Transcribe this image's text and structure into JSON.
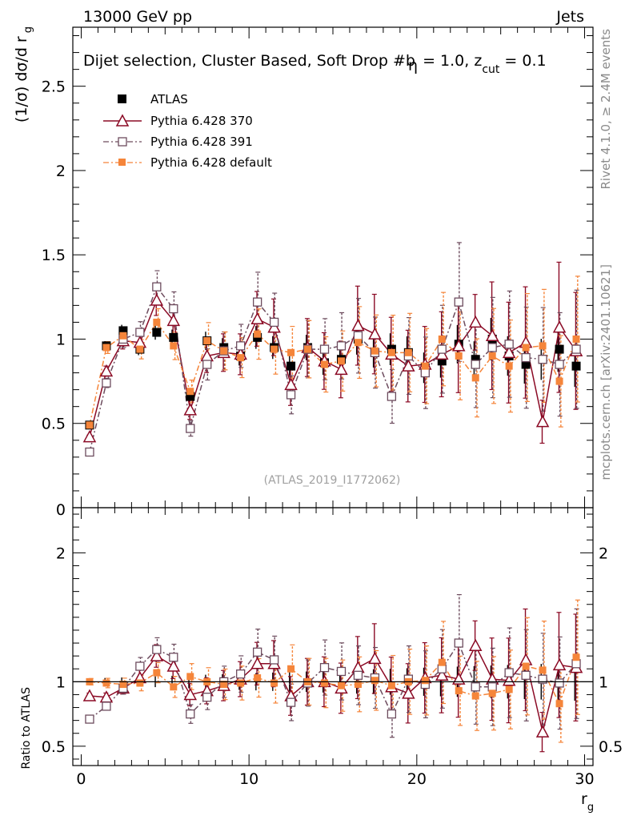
{
  "chart_data": {
    "type": "scatter",
    "header_left": "13000 GeV pp",
    "header_right": "Jets",
    "title_parts": [
      "Dijet selection, Cluster Based, Soft Drop #b",
      "η",
      " = 1.0, z",
      "cut",
      " = 0.1"
    ],
    "watermark": "(ATLAS_2019_I1772062)",
    "side_label_top": "Rivet 4.1.0, ≥ 2.4M events",
    "side_label_bottom": "mcplots.cern.ch [arXiv:2401.10621]",
    "main_ylabel": "(1/σ) dσ/d r",
    "main_ylabel_sub": "g",
    "ratio_ylabel": "Ratio to ATLAS",
    "xlabel": "r",
    "xlabel_sub": "g",
    "xlim": [
      -0.5,
      30.5
    ],
    "main_ylim": [
      0,
      2.85
    ],
    "ratio_ylim": [
      0.35,
      2.35
    ],
    "main_yticks": [
      {
        "v": 0.5,
        "label": "0.5"
      },
      {
        "v": 1,
        "label": "1"
      },
      {
        "v": 1.5,
        "label": "1.5"
      },
      {
        "v": 2,
        "label": "2"
      },
      {
        "v": 2.5,
        "label": "2.5"
      }
    ],
    "main_bottom_label": "0",
    "ratio_yticks": [
      {
        "v": 0.5,
        "label": "0.5"
      },
      {
        "v": 1,
        "label": "1"
      },
      {
        "v": 2,
        "label": "2"
      }
    ],
    "xticks": [
      {
        "v": 0,
        "label": "0"
      },
      {
        "v": 10,
        "label": "10"
      },
      {
        "v": 20,
        "label": "20"
      },
      {
        "v": 30,
        "label": "30"
      }
    ],
    "x": [
      0.5,
      1.5,
      2.5,
      3.5,
      4.5,
      5.5,
      6.5,
      7.5,
      8.5,
      9.5,
      10.5,
      11.5,
      12.5,
      13.5,
      14.5,
      15.5,
      16.5,
      17.5,
      18.5,
      19.5,
      20.5,
      21.5,
      22.5,
      23.5,
      24.5,
      25.5,
      26.5,
      27.5,
      28.5,
      29.5
    ],
    "series": [
      {
        "name": "ATLAS",
        "style": "data",
        "color": "#000000",
        "values": [
          0.49,
          0.96,
          1.05,
          0.94,
          1.04,
          1.01,
          0.66,
          0.99,
          0.95,
          0.9,
          1.01,
          0.95,
          0.84,
          0.95,
          0.86,
          0.88,
          1.0,
          0.92,
          0.94,
          0.92,
          0.83,
          0.87,
          0.97,
          0.88,
          1.0,
          0.9,
          0.85,
          0.88,
          0.94,
          0.84
        ],
        "ratio": [
          1,
          1,
          1,
          1,
          1,
          1,
          1,
          1,
          1,
          1,
          1,
          1,
          1,
          1,
          1,
          1,
          1,
          1,
          1,
          1,
          1,
          1,
          1,
          1,
          1,
          1,
          1,
          1,
          1,
          1
        ]
      },
      {
        "name": "Pythia 6.428 370",
        "style": "triangle",
        "color": "#8b0a25",
        "values": [
          0.42,
          0.81,
          0.99,
          0.98,
          1.23,
          1.11,
          0.58,
          0.9,
          0.92,
          0.91,
          1.12,
          1.07,
          0.73,
          0.95,
          0.87,
          0.82,
          1.08,
          1.03,
          0.91,
          0.84,
          0.85,
          0.91,
          0.96,
          1.1,
          1.02,
          0.92,
          0.98,
          0.51,
          1.07,
          0.93
        ],
        "ratio": [
          0.89,
          0.88,
          0.95,
          1.03,
          1.2,
          1.12,
          0.9,
          0.93,
          0.97,
          1.02,
          1.14,
          1.14,
          0.89,
          1.0,
          1.0,
          0.95,
          1.11,
          1.18,
          0.96,
          0.91,
          1.03,
          1.05,
          1.02,
          1.28,
          1.02,
          1.01,
          1.17,
          0.61,
          1.13,
          1.11
        ]
      },
      {
        "name": "Pythia 6.428 391",
        "style": "square-open",
        "color": "#6d4c5e",
        "values": [
          0.33,
          0.74,
          1.0,
          1.04,
          1.31,
          1.18,
          0.47,
          0.85,
          0.93,
          0.96,
          1.22,
          1.1,
          0.67,
          0.94,
          0.94,
          0.96,
          1.02,
          0.92,
          0.66,
          0.9,
          0.8,
          0.94,
          1.22,
          0.85,
          0.95,
          0.97,
          0.89,
          0.88,
          0.85,
          0.94
        ],
        "ratio": [
          0.71,
          0.81,
          0.95,
          1.12,
          1.25,
          1.19,
          0.75,
          0.88,
          1.0,
          1.06,
          1.23,
          1.17,
          0.84,
          0.99,
          1.11,
          1.08,
          1.05,
          1.03,
          0.75,
          1.02,
          0.98,
          1.1,
          1.3,
          0.96,
          0.96,
          1.07,
          1.05,
          1.02,
          0.99,
          1.14
        ]
      },
      {
        "name": "Pythia 6.428 default",
        "style": "square-filled",
        "color": "#f5853a",
        "values": [
          0.49,
          0.95,
          1.02,
          0.94,
          1.1,
          0.96,
          0.69,
          0.99,
          0.93,
          0.89,
          1.03,
          0.94,
          0.92,
          0.94,
          0.85,
          0.87,
          0.98,
          0.93,
          0.92,
          0.92,
          0.84,
          1.0,
          0.9,
          0.77,
          0.9,
          0.84,
          0.95,
          0.96,
          0.75,
          1.0
        ],
        "ratio": [
          1.0,
          0.99,
          0.98,
          0.99,
          1.07,
          0.96,
          1.04,
          1.0,
          0.98,
          0.99,
          1.03,
          0.99,
          1.1,
          1.0,
          0.99,
          0.97,
          0.98,
          1.01,
          0.97,
          1.0,
          1.01,
          1.15,
          0.93,
          0.89,
          0.91,
          0.94,
          1.12,
          1.09,
          0.83,
          1.19
        ]
      }
    ]
  }
}
